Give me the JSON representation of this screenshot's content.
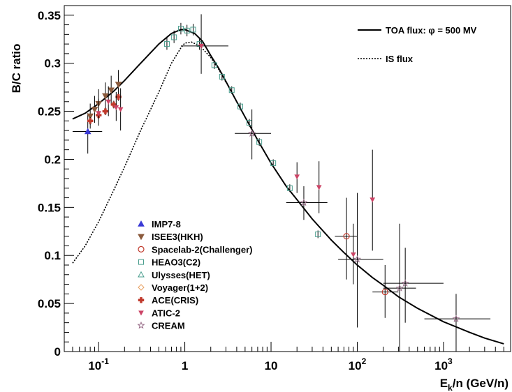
{
  "chart_data": {
    "type": "scatter",
    "xscale": "log",
    "xlim": [
      0.04,
      6000
    ],
    "ylim": [
      0,
      0.36
    ],
    "xlabel_main": "E",
    "xlabel_sub": "k",
    "xlabel_rest": "/n (GeV/n)",
    "ylabel": "B/C ratio",
    "x_ticks": [
      {
        "value": 0.1,
        "base": "10",
        "exp": "-1"
      },
      {
        "value": 1,
        "base": "1",
        "exp": ""
      },
      {
        "value": 10,
        "base": "10",
        "exp": ""
      },
      {
        "value": 100,
        "base": "10",
        "exp": "2"
      },
      {
        "value": 1000,
        "base": "10",
        "exp": "3"
      }
    ],
    "y_ticks": [
      {
        "value": 0,
        "label": "0"
      },
      {
        "value": 0.05,
        "label": "0.05"
      },
      {
        "value": 0.1,
        "label": "0.1"
      },
      {
        "value": 0.15,
        "label": "0.15"
      },
      {
        "value": 0.2,
        "label": "0.2"
      },
      {
        "value": 0.25,
        "label": "0.25"
      },
      {
        "value": 0.3,
        "label": "0.3"
      },
      {
        "value": 0.35,
        "label": "0.35"
      }
    ],
    "grid": false,
    "curves": [
      {
        "name_pre": "TOA flux: ",
        "name_phi": "φ",
        "name_post": " = 500 MV",
        "style": "solid",
        "points": [
          [
            0.05,
            0.242
          ],
          [
            0.07,
            0.248
          ],
          [
            0.1,
            0.258
          ],
          [
            0.15,
            0.271
          ],
          [
            0.2,
            0.282
          ],
          [
            0.3,
            0.299
          ],
          [
            0.5,
            0.32
          ],
          [
            0.7,
            0.331
          ],
          [
            0.9,
            0.335
          ],
          [
            1.0,
            0.335
          ],
          [
            1.3,
            0.331
          ],
          [
            1.6,
            0.323
          ],
          [
            2.0,
            0.308
          ],
          [
            2.5,
            0.294
          ],
          [
            3.0,
            0.281
          ],
          [
            4.0,
            0.26
          ],
          [
            5.0,
            0.244
          ],
          [
            7.0,
            0.22
          ],
          [
            10.0,
            0.196
          ],
          [
            15.0,
            0.172
          ],
          [
            20.0,
            0.158
          ],
          [
            30.0,
            0.138
          ],
          [
            50.0,
            0.116
          ],
          [
            70.0,
            0.103
          ],
          [
            100.0,
            0.09
          ],
          [
            150.0,
            0.077
          ],
          [
            200.0,
            0.069
          ],
          [
            300.0,
            0.057
          ],
          [
            500.0,
            0.045
          ],
          [
            1000.0,
            0.031
          ],
          [
            2000.0,
            0.02
          ],
          [
            3000.0,
            0.014
          ],
          [
            5000.0,
            0.008
          ]
        ]
      },
      {
        "name": "IS flux",
        "style": "dotted",
        "points": [
          [
            0.05,
            0.092
          ],
          [
            0.07,
            0.11
          ],
          [
            0.1,
            0.135
          ],
          [
            0.15,
            0.168
          ],
          [
            0.2,
            0.192
          ],
          [
            0.3,
            0.228
          ],
          [
            0.5,
            0.27
          ],
          [
            0.7,
            0.3
          ],
          [
            0.9,
            0.316
          ],
          [
            1.0,
            0.321
          ],
          [
            1.2,
            0.322
          ],
          [
            1.5,
            0.318
          ],
          [
            2.0,
            0.306
          ],
          [
            2.5,
            0.293
          ],
          [
            3.0,
            0.28
          ]
        ]
      }
    ],
    "series": [
      {
        "name": "IMP7-8",
        "marker": "triangle-up-filled",
        "color": "#3b3bd6",
        "points": [
          {
            "x": 0.075,
            "y": 0.229,
            "xerr": [
              0.05,
              0.11
            ],
            "yerr": [
              0.206,
              0.248
            ]
          }
        ]
      },
      {
        "name": "ISEE3(HKH)",
        "marker": "triangle-down-filled",
        "color": "#8b5a3c",
        "points": [
          {
            "x": 0.08,
            "y": 0.245,
            "yerr": [
              0.232,
              0.258
            ]
          },
          {
            "x": 0.09,
            "y": 0.252,
            "yerr": [
              0.238,
              0.266
            ]
          },
          {
            "x": 0.1,
            "y": 0.258,
            "yerr": [
              0.244,
              0.273
            ]
          },
          {
            "x": 0.12,
            "y": 0.266,
            "yerr": [
              0.252,
              0.28
            ]
          },
          {
            "x": 0.14,
            "y": 0.272,
            "yerr": [
              0.258,
              0.287
            ]
          },
          {
            "x": 0.17,
            "y": 0.278,
            "yerr": [
              0.262,
              0.293
            ]
          }
        ]
      },
      {
        "name": "Spacelab-2(Challenger)",
        "marker": "circle-open",
        "color": "#c0392b",
        "points": [
          {
            "x": 75,
            "y": 0.12,
            "xerr": [
              55,
              100
            ],
            "yerr": [
              0.075,
              0.16
            ]
          },
          {
            "x": 210,
            "y": 0.062,
            "xerr": [
              150,
              300
            ],
            "yerr": [
              0.035,
              0.09
            ]
          }
        ]
      },
      {
        "name": "HEAO3(C2)",
        "marker": "square-open",
        "color": "#4a9e8e",
        "points": [
          {
            "x": 0.62,
            "y": 0.32,
            "yerr": [
              0.314,
              0.327
            ]
          },
          {
            "x": 0.75,
            "y": 0.327,
            "yerr": [
              0.321,
              0.334
            ]
          },
          {
            "x": 0.9,
            "y": 0.336,
            "yerr": [
              0.33,
              0.342
            ]
          },
          {
            "x": 1.06,
            "y": 0.334,
            "yerr": [
              0.328,
              0.34
            ]
          },
          {
            "x": 1.25,
            "y": 0.335,
            "yerr": [
              0.329,
              0.341
            ]
          },
          {
            "x": 1.48,
            "y": 0.32,
            "yerr": [
              0.314,
              0.326
            ]
          },
          {
            "x": 2.2,
            "y": 0.298,
            "yerr": [
              0.294,
              0.303
            ]
          },
          {
            "x": 2.7,
            "y": 0.286,
            "yerr": [
              0.282,
              0.29
            ]
          },
          {
            "x": 3.5,
            "y": 0.272,
            "yerr": [
              0.268,
              0.276
            ]
          },
          {
            "x": 4.4,
            "y": 0.255,
            "yerr": [
              0.251,
              0.259
            ]
          },
          {
            "x": 5.6,
            "y": 0.238,
            "yerr": [
              0.234,
              0.242
            ]
          },
          {
            "x": 7.3,
            "y": 0.218,
            "yerr": [
              0.214,
              0.222
            ]
          },
          {
            "x": 10.6,
            "y": 0.196,
            "yerr": [
              0.192,
              0.2
            ]
          },
          {
            "x": 16.5,
            "y": 0.17,
            "yerr": [
              0.166,
              0.174
            ]
          },
          {
            "x": 35,
            "y": 0.122,
            "yerr": [
              0.118,
              0.126
            ]
          }
        ]
      },
      {
        "name": "Ulysses(HET)",
        "marker": "triangle-up-open",
        "color": "#4a9e8e",
        "points": []
      },
      {
        "name": "Voyager(1+2)",
        "marker": "diamond-open",
        "color": "#e8a060",
        "points": []
      },
      {
        "name": "ACE(CRIS)",
        "marker": "cross-filled",
        "color": "#c0392b",
        "points": [
          {
            "x": 0.08,
            "y": 0.24,
            "yerr": [
              0.236,
              0.244
            ]
          },
          {
            "x": 0.1,
            "y": 0.246,
            "yerr": [
              0.242,
              0.25
            ]
          },
          {
            "x": 0.12,
            "y": 0.25,
            "yerr": [
              0.246,
              0.254
            ]
          },
          {
            "x": 0.15,
            "y": 0.257,
            "yerr": [
              0.253,
              0.261
            ]
          },
          {
            "x": 0.17,
            "y": 0.265,
            "yerr": [
              0.261,
              0.269
            ]
          }
        ]
      },
      {
        "name": "ATIC-2",
        "marker": "triangle-down-small",
        "color": "#cc4466",
        "points": [
          {
            "x": 0.1,
            "y": 0.248,
            "yerr": [
              0.235,
              0.263
            ]
          },
          {
            "x": 0.13,
            "y": 0.26,
            "yerr": [
              0.245,
              0.276
            ]
          },
          {
            "x": 0.16,
            "y": 0.254,
            "yerr": [
              0.24,
              0.27
            ]
          },
          {
            "x": 0.18,
            "y": 0.252,
            "yerr": [
              0.23,
              0.274
            ]
          },
          {
            "x": 1.55,
            "y": 0.318,
            "xerr": [
              0.9,
              3.2
            ],
            "yerr": [
              0.289,
              0.351
            ]
          },
          {
            "x": 20,
            "y": 0.182,
            "yerr": [
              0.165,
              0.197
            ]
          },
          {
            "x": 36,
            "y": 0.171,
            "yerr": [
              0.144,
              0.198
            ]
          },
          {
            "x": 90,
            "y": 0.101,
            "yerr": [
              0.07,
              0.133
            ]
          },
          {
            "x": 150,
            "y": 0.158,
            "yerr": [
              0.105,
              0.21
            ]
          }
        ]
      },
      {
        "name": "CREAM",
        "marker": "star-open",
        "color": "#9a6f8a",
        "points": [
          {
            "x": 6,
            "y": 0.227,
            "xerr": [
              3.8,
              10
            ],
            "yerr": [
              0.2,
              0.252
            ]
          },
          {
            "x": 24,
            "y": 0.155,
            "xerr": [
              15,
              45
            ],
            "yerr": [
              0.137,
              0.172
            ]
          },
          {
            "x": 100,
            "y": 0.096,
            "xerr": [
              60,
              200
            ],
            "yerr": [
              0.025,
              0.165
            ]
          },
          {
            "x": 310,
            "y": 0.066,
            "xerr": [
              200,
              480
            ],
            "yerr": [
              0.0,
              0.133
            ]
          },
          {
            "x": 360,
            "y": 0.071,
            "xerr": [
              200,
              1000
            ],
            "yerr": [
              0.03,
              0.108
            ]
          },
          {
            "x": 1400,
            "y": 0.034,
            "xerr": [
              600,
              3500
            ],
            "yerr": [
              0.0,
              0.06
            ]
          }
        ]
      }
    ]
  }
}
